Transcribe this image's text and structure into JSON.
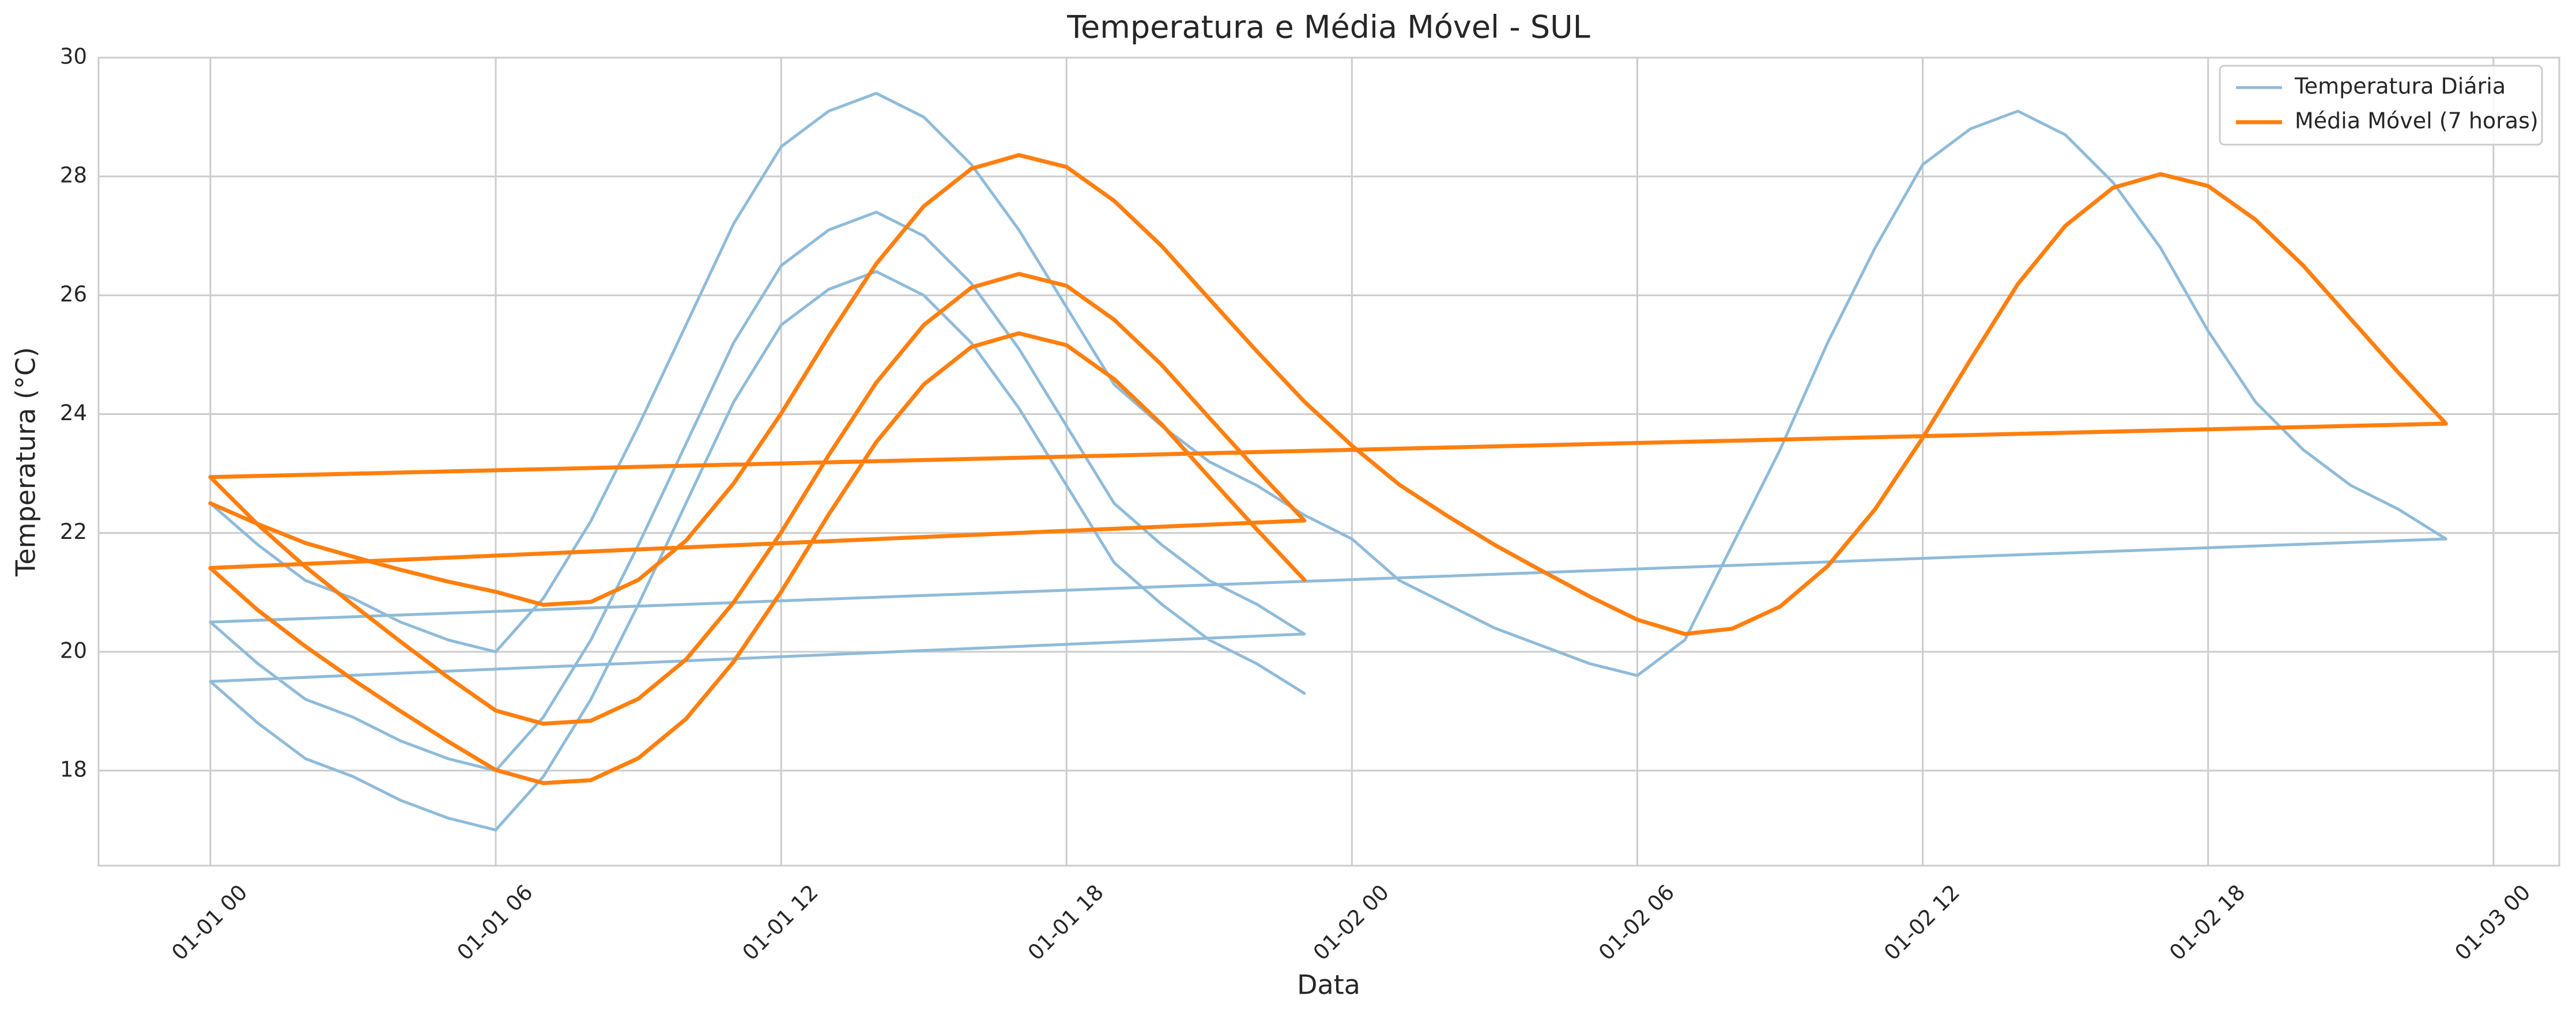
{
  "chart_data": {
    "type": "line",
    "title": "Temperatura e Média Móvel - SUL",
    "x_label": "Data",
    "y_label": "Temperatura (°C)",
    "x": [
      "01-01 00",
      "01-01 01",
      "01-01 02",
      "01-01 03",
      "01-01 04",
      "01-01 05",
      "01-01 06",
      "01-01 07",
      "01-01 08",
      "01-01 09",
      "01-01 10",
      "01-01 11",
      "01-01 12",
      "01-01 13",
      "01-01 14",
      "01-01 15",
      "01-01 16",
      "01-01 17",
      "01-01 18",
      "01-01 19",
      "01-01 20",
      "01-01 21",
      "01-01 22",
      "01-01 23",
      "01-02 00",
      "01-02 01",
      "01-02 02",
      "01-02 03",
      "01-02 04",
      "01-02 05",
      "01-02 06",
      "01-02 07",
      "01-02 08",
      "01-02 09",
      "01-02 10",
      "01-02 11",
      "01-02 12",
      "01-02 13",
      "01-02 14",
      "01-02 15",
      "01-02 16",
      "01-02 17",
      "01-02 18",
      "01-02 19",
      "01-02 20",
      "01-02 21",
      "01-02 22",
      "01-02 23",
      "01-01 00",
      "01-01 01",
      "01-01 02",
      "01-01 03",
      "01-01 04",
      "01-01 05",
      "01-01 06",
      "01-01 07",
      "01-01 08",
      "01-01 09",
      "01-01 10",
      "01-01 11",
      "01-01 12",
      "01-01 13",
      "01-01 14",
      "01-01 15",
      "01-01 16",
      "01-01 17",
      "01-01 18",
      "01-01 19",
      "01-01 20",
      "01-01 21",
      "01-01 22",
      "01-01 23",
      "01-01 00",
      "01-01 01",
      "01-01 02",
      "01-01 03",
      "01-01 04",
      "01-01 05",
      "01-01 06",
      "01-01 07",
      "01-01 08",
      "01-01 09",
      "01-01 10",
      "01-01 11",
      "01-01 12",
      "01-01 13",
      "01-01 14",
      "01-01 15",
      "01-01 16",
      "01-01 17",
      "01-01 18",
      "01-01 19",
      "01-01 20",
      "01-01 21",
      "01-01 22",
      "01-01 23"
    ],
    "series": [
      {
        "name": "Temperatura Diária",
        "color": "#8fbbd9",
        "line_width": 5,
        "values": [
          22.5,
          21.8,
          21.2,
          20.9,
          20.5,
          20.2,
          20.0,
          20.9,
          22.2,
          23.8,
          25.5,
          27.2,
          28.5,
          29.1,
          29.4,
          29.0,
          28.2,
          27.1,
          25.8,
          24.5,
          23.8,
          23.2,
          22.8,
          22.3,
          21.9,
          21.2,
          20.8,
          20.4,
          20.1,
          19.8,
          19.6,
          20.2,
          21.8,
          23.4,
          25.2,
          26.8,
          28.2,
          28.8,
          29.1,
          28.7,
          27.9,
          26.8,
          25.4,
          24.2,
          23.4,
          22.8,
          22.4,
          21.9,
          20.5,
          19.8,
          19.2,
          18.9,
          18.5,
          18.2,
          18.0,
          18.9,
          20.2,
          21.8,
          23.5,
          25.2,
          26.5,
          27.1,
          27.4,
          27.0,
          26.2,
          25.1,
          23.8,
          22.5,
          21.8,
          21.2,
          20.8,
          20.3,
          19.5,
          18.8,
          18.2,
          17.9,
          17.5,
          17.2,
          17.0,
          17.9,
          19.2,
          20.8,
          22.5,
          24.2,
          25.5,
          26.1,
          26.4,
          26.0,
          25.2,
          24.1,
          22.8,
          21.5,
          20.8,
          20.2,
          19.8,
          19.3
        ]
      },
      {
        "name": "Média Móvel (7 horas)",
        "color": "#ff7f0e",
        "line_width": 7,
        "values": [
          22.5,
          22.15,
          21.83,
          21.6,
          21.38,
          21.18,
          21.01,
          20.79,
          20.84,
          21.21,
          21.87,
          22.83,
          24.01,
          25.31,
          26.53,
          27.5,
          28.13,
          28.36,
          28.16,
          27.59,
          26.83,
          25.94,
          25.06,
          24.21,
          23.47,
          22.81,
          22.29,
          21.8,
          21.36,
          20.93,
          20.54,
          20.3,
          20.39,
          20.76,
          21.44,
          22.4,
          23.6,
          24.91,
          26.19,
          27.17,
          27.81,
          28.04,
          27.84,
          27.27,
          26.5,
          25.6,
          24.7,
          23.84,
          22.94,
          22.14,
          21.43,
          20.79,
          20.17,
          19.57,
          19.01,
          18.79,
          18.84,
          19.21,
          19.87,
          20.83,
          22.01,
          23.31,
          24.53,
          25.5,
          26.13,
          26.36,
          26.16,
          25.59,
          24.83,
          23.94,
          23.06,
          22.21,
          21.41,
          20.7,
          20.09,
          19.53,
          19.0,
          18.49,
          18.01,
          17.79,
          17.84,
          18.21,
          18.87,
          19.83,
          21.01,
          22.31,
          23.53,
          24.5,
          25.13,
          25.36,
          25.16,
          24.59,
          23.83,
          22.94,
          22.06,
          21.21
        ]
      }
    ],
    "xlim": [
      "12-31 21:39",
      "01-03 01:23"
    ],
    "xticks": [
      "01-01 00",
      "01-01 06",
      "01-01 12",
      "01-01 18",
      "01-02 00",
      "01-02 06",
      "01-02 12",
      "01-02 18",
      "01-03 00"
    ],
    "ylim": [
      16.4,
      30
    ],
    "yticks": [
      18,
      20,
      22,
      24,
      26,
      28,
      30
    ],
    "grid": true,
    "legend": "upper right"
  }
}
